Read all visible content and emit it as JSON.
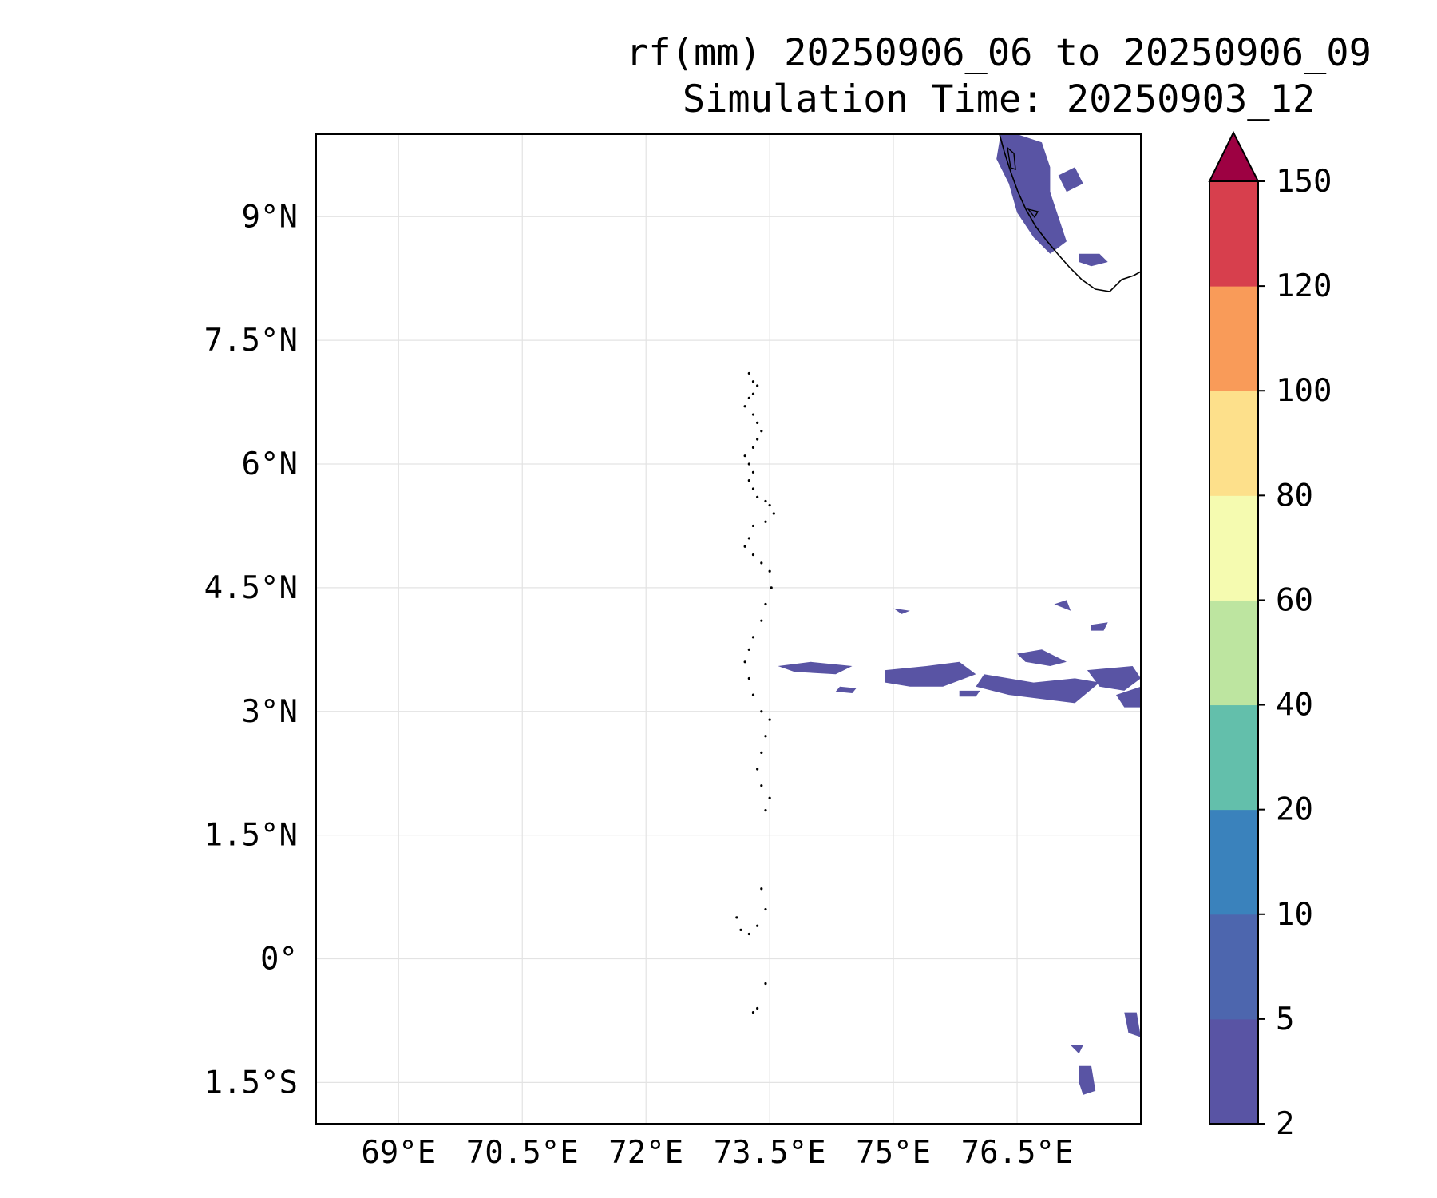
{
  "figure": {
    "title_line1": "rf(mm) 20250906_06 to 20250906_09",
    "title_line2": "Simulation Time: 20250903_12"
  },
  "map": {
    "lon_range": [
      68.0,
      78.0
    ],
    "lat_range": [
      -2.0,
      10.0
    ],
    "gridlines": true,
    "x_ticks": [
      {
        "value": 69.0,
        "label": "69°E"
      },
      {
        "value": 70.5,
        "label": "70.5°E"
      },
      {
        "value": 72.0,
        "label": "72°E"
      },
      {
        "value": 73.5,
        "label": "73.5°E"
      },
      {
        "value": 75.0,
        "label": "75°E"
      },
      {
        "value": 76.5,
        "label": "76.5°E"
      }
    ],
    "y_ticks": [
      {
        "value": 9.0,
        "label": "9°N"
      },
      {
        "value": 7.5,
        "label": "7.5°N"
      },
      {
        "value": 6.0,
        "label": "6°N"
      },
      {
        "value": 4.5,
        "label": "4.5°N"
      },
      {
        "value": 3.0,
        "label": "3°N"
      },
      {
        "value": 1.5,
        "label": "1.5°N"
      },
      {
        "value": 0.0,
        "label": "0°"
      },
      {
        "value": -1.5,
        "label": "1.5°S"
      }
    ],
    "rain_color": "#5954a4",
    "rain_regions": [
      {
        "name": "kerala-coast",
        "points": [
          [
            76.3,
            10.0
          ],
          [
            76.5,
            10.0
          ],
          [
            76.8,
            9.9
          ],
          [
            76.9,
            9.6
          ],
          [
            76.9,
            9.3
          ],
          [
            77.0,
            9.0
          ],
          [
            77.1,
            8.7
          ],
          [
            76.9,
            8.55
          ],
          [
            76.7,
            8.75
          ],
          [
            76.5,
            9.05
          ],
          [
            76.4,
            9.4
          ],
          [
            76.25,
            9.7
          ]
        ]
      },
      {
        "name": "kerala-east",
        "points": [
          [
            77.0,
            9.5
          ],
          [
            77.2,
            9.6
          ],
          [
            77.3,
            9.4
          ],
          [
            77.1,
            9.3
          ]
        ]
      },
      {
        "name": "kerala-south",
        "points": [
          [
            77.25,
            8.55
          ],
          [
            77.5,
            8.55
          ],
          [
            77.6,
            8.45
          ],
          [
            77.4,
            8.4
          ],
          [
            77.25,
            8.45
          ]
        ]
      },
      {
        "name": "band-west",
        "points": [
          [
            73.6,
            3.55
          ],
          [
            74.0,
            3.6
          ],
          [
            74.5,
            3.55
          ],
          [
            74.3,
            3.45
          ],
          [
            73.8,
            3.48
          ]
        ]
      },
      {
        "name": "band-mid",
        "points": [
          [
            74.9,
            3.5
          ],
          [
            75.4,
            3.55
          ],
          [
            75.8,
            3.6
          ],
          [
            76.0,
            3.45
          ],
          [
            75.6,
            3.3
          ],
          [
            75.2,
            3.3
          ],
          [
            74.9,
            3.35
          ]
        ]
      },
      {
        "name": "band-east1",
        "points": [
          [
            76.1,
            3.45
          ],
          [
            76.7,
            3.35
          ],
          [
            77.2,
            3.4
          ],
          [
            77.5,
            3.35
          ],
          [
            77.2,
            3.1
          ],
          [
            76.8,
            3.15
          ],
          [
            76.4,
            3.2
          ],
          [
            76.0,
            3.3
          ]
        ]
      },
      {
        "name": "band-east2",
        "points": [
          [
            76.5,
            3.7
          ],
          [
            76.8,
            3.75
          ],
          [
            77.1,
            3.6
          ],
          [
            76.9,
            3.55
          ],
          [
            76.6,
            3.6
          ]
        ]
      },
      {
        "name": "band-east3",
        "points": [
          [
            77.35,
            3.5
          ],
          [
            77.9,
            3.55
          ],
          [
            78.0,
            3.4
          ],
          [
            77.8,
            3.25
          ],
          [
            77.5,
            3.3
          ]
        ]
      },
      {
        "name": "band-edge",
        "points": [
          [
            77.7,
            3.2
          ],
          [
            78.0,
            3.3
          ],
          [
            78.0,
            3.05
          ],
          [
            77.8,
            3.05
          ]
        ]
      },
      {
        "name": "blob-a",
        "points": [
          [
            75.8,
            3.25
          ],
          [
            76.05,
            3.25
          ],
          [
            76.0,
            3.18
          ],
          [
            75.8,
            3.18
          ]
        ]
      },
      {
        "name": "blob-b",
        "points": [
          [
            74.35,
            3.3
          ],
          [
            74.55,
            3.28
          ],
          [
            74.5,
            3.22
          ],
          [
            74.3,
            3.24
          ]
        ]
      },
      {
        "name": "blob-c",
        "points": [
          [
            75.0,
            4.25
          ],
          [
            75.2,
            4.22
          ],
          [
            75.1,
            4.18
          ]
        ]
      },
      {
        "name": "blob-d",
        "points": [
          [
            76.95,
            4.3
          ],
          [
            77.1,
            4.35
          ],
          [
            77.15,
            4.22
          ]
        ]
      },
      {
        "name": "blob-e",
        "points": [
          [
            77.4,
            4.05
          ],
          [
            77.6,
            4.08
          ],
          [
            77.55,
            3.98
          ],
          [
            77.4,
            3.98
          ]
        ]
      },
      {
        "name": "south-1",
        "points": [
          [
            77.8,
            -0.65
          ],
          [
            77.95,
            -0.65
          ],
          [
            78.0,
            -0.95
          ],
          [
            77.85,
            -0.9
          ]
        ]
      },
      {
        "name": "south-2",
        "points": [
          [
            77.25,
            -1.3
          ],
          [
            77.4,
            -1.3
          ],
          [
            77.45,
            -1.6
          ],
          [
            77.3,
            -1.65
          ],
          [
            77.25,
            -1.5
          ]
        ]
      },
      {
        "name": "south-3",
        "points": [
          [
            77.15,
            -1.05
          ],
          [
            77.3,
            -1.05
          ],
          [
            77.25,
            -1.15
          ]
        ]
      }
    ]
  },
  "colorbar": {
    "levels": [
      "2",
      "5",
      "10",
      "20",
      "40",
      "60",
      "80",
      "100",
      "120",
      "150"
    ],
    "colors": [
      "#5954a4",
      "#4d66ae",
      "#3a82bc",
      "#63bfab",
      "#bde5a0",
      "#f5fbb0",
      "#fde08b",
      "#f99b59",
      "#d73f4d"
    ],
    "extend_color": "#9d0142"
  }
}
